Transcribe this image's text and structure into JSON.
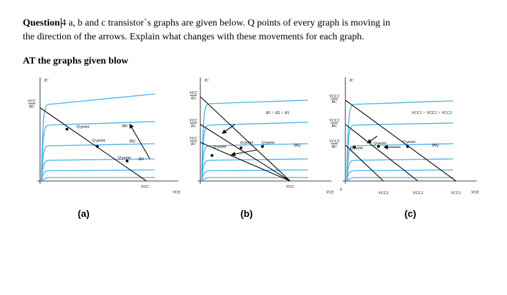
{
  "question": {
    "label": "Question",
    "number": "4",
    "line1": "a, b and c transistor`s graphs are given below. Q points of every graph is moving in",
    "line2": "the direction of the arrows. Explain what changes with these movements for each graph."
  },
  "subheading": "AT the graphs given blow",
  "graphs": [
    {
      "caption": "(a)",
      "y_axis": "IC",
      "x_axis": "VCE",
      "intercept_top": "VCC",
      "intercept_bottom": "RC",
      "x_intercept": "VCC",
      "q_points": [
        "Q-point",
        "Q-point",
        "Q-point"
      ],
      "currents": [
        "IB3",
        "IB2",
        "IB1"
      ]
    },
    {
      "caption": "(b)",
      "y_axis": "IC",
      "x_axis": "VCE",
      "x_intercept": "VCC",
      "note": "R3 > R2 > R1",
      "current": "IBQ",
      "intercepts": [
        {
          "top": "VCC",
          "bottom": "R3"
        },
        {
          "top": "VCC",
          "bottom": "R2"
        },
        {
          "top": "VCC",
          "bottom": "R1"
        }
      ],
      "q_points": [
        "Q-point",
        "Q-point",
        "Q-point"
      ]
    },
    {
      "caption": "(c)",
      "y_axis": "IC",
      "x_axis": "VCE",
      "origin": "0",
      "note": "VCC1 > VCC2 > VCC3",
      "current": "IBQ",
      "intercepts": [
        {
          "top": "VCC1",
          "bottom": "RC"
        },
        {
          "top": "VCC2",
          "bottom": "RC"
        },
        {
          "top": "VCC3",
          "bottom": "RC"
        }
      ],
      "x_intercepts": [
        "VCC3",
        "VCC2",
        "VCC1"
      ],
      "q_points": [
        "Q-point",
        "Q-point",
        "Q-point"
      ]
    }
  ]
}
